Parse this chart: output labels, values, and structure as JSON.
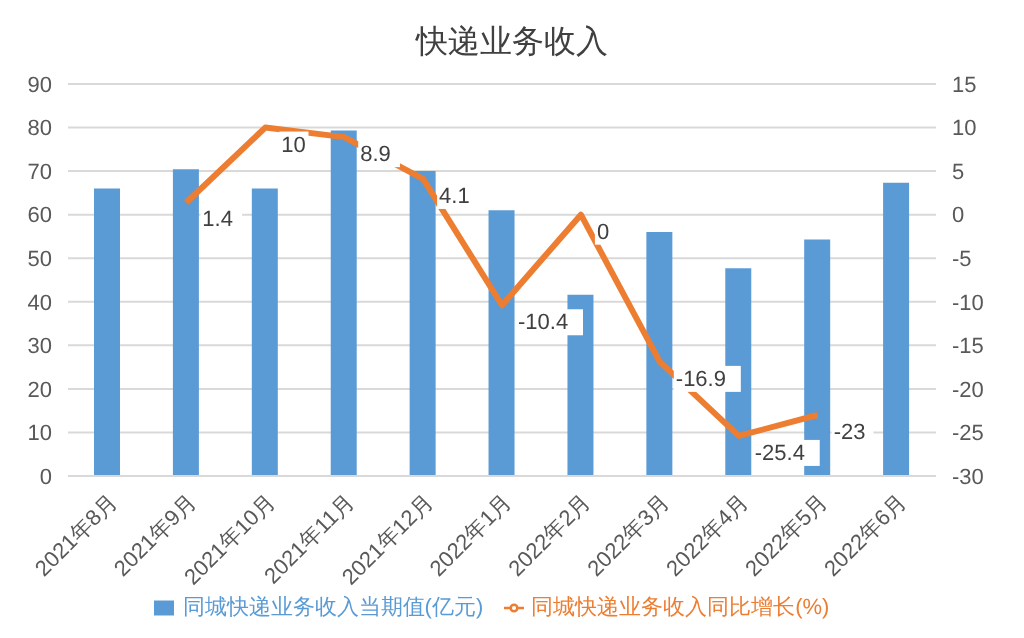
{
  "chart_data": {
    "type": "bar",
    "title": "快递业务收入",
    "categories": [
      "2021年8月",
      "2021年9月",
      "2021年10月",
      "2021年11月",
      "2021年12月",
      "2022年1月",
      "2022年2月",
      "2022年3月",
      "2022年4月",
      "2022年5月",
      "2022年6月"
    ],
    "series": [
      {
        "name": "同城快递业务收入当期值(亿元)",
        "color": "#5b9bd5",
        "values": [
          66,
          70.4,
          66,
          79.3,
          70,
          61,
          41.6,
          56,
          47.7,
          54.3,
          67.3
        ]
      },
      {
        "name": "同城快递业务收入同比增长(%)",
        "type": "line",
        "axis": "y2",
        "color": "#ed7d31",
        "values": [
          null,
          1.4,
          10,
          8.9,
          4.1,
          -10.4,
          0,
          -16.9,
          -25.4,
          -23,
          null
        ],
        "value_labels": [
          null,
          "1.4",
          "10",
          "8.9",
          "4.1",
          "-10.4",
          "0",
          "-16.9",
          "-25.4",
          "-23",
          null
        ]
      }
    ],
    "ylim": [
      0,
      90
    ],
    "yticks": [
      0,
      10,
      20,
      30,
      40,
      50,
      60,
      70,
      80,
      90
    ],
    "y2lim": [
      -30,
      15
    ],
    "y2ticks": [
      -30,
      -25,
      -20,
      -15,
      -10,
      -5,
      0,
      5,
      10,
      15
    ],
    "grid": "y",
    "legend": "bottom",
    "marker": "none"
  }
}
